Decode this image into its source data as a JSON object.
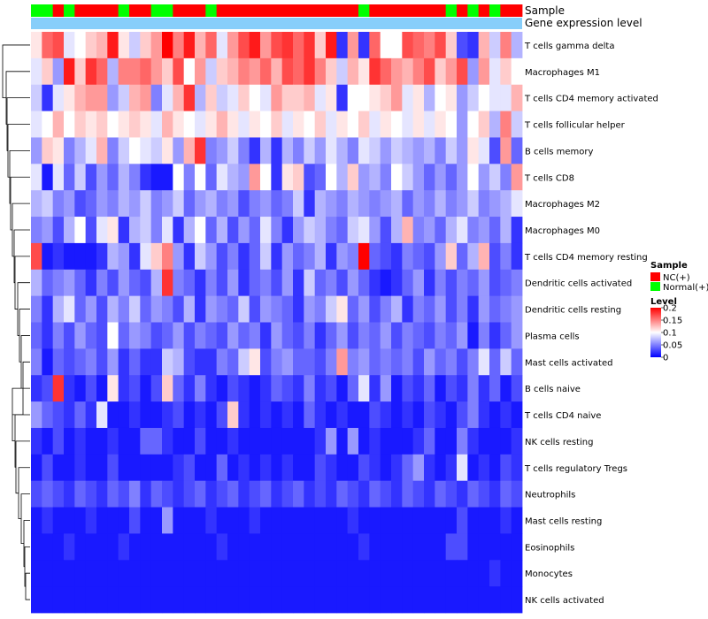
{
  "chart_data": {
    "type": "heatmap",
    "annotation_rows": [
      "Sample",
      "Gene expression level"
    ],
    "sample_groups": [
      "N",
      "N",
      "R",
      "N",
      "R",
      "R",
      "R",
      "R",
      "N",
      "R",
      "R",
      "N",
      "N",
      "R",
      "R",
      "R",
      "N",
      "R",
      "R",
      "R",
      "R",
      "R",
      "R",
      "R",
      "R",
      "R",
      "R",
      "R",
      "R",
      "R",
      "N",
      "R",
      "R",
      "R",
      "R",
      "R",
      "R",
      "R",
      "N",
      "R",
      "N",
      "R",
      "N",
      "R",
      "R"
    ],
    "gene_expression_color": "#87CEFA",
    "rows": [
      {
        "label": "T cells gamma delta",
        "values": [
          0.11,
          0.16,
          0.17,
          0.09,
          0.1,
          0.12,
          0.13,
          0.19,
          0.11,
          0.08,
          0.12,
          0.14,
          0.2,
          0.15,
          0.19,
          0.13,
          0.16,
          0.09,
          0.14,
          0.17,
          0.19,
          0.14,
          0.17,
          0.18,
          0.16,
          0.18,
          0.12,
          0.19,
          0.02,
          0.14,
          0.02,
          0.16,
          0.1,
          0.1,
          0.17,
          0.16,
          0.15,
          0.17,
          0.12,
          0.03,
          0.02,
          0.13,
          0.08,
          0.15,
          0.07
        ]
      },
      {
        "label": "Macrophages M1",
        "values": [
          0.09,
          0.12,
          0.06,
          0.19,
          0.12,
          0.18,
          0.16,
          0.07,
          0.15,
          0.15,
          0.16,
          0.14,
          0.12,
          0.17,
          0.1,
          0.14,
          0.08,
          0.12,
          0.13,
          0.15,
          0.14,
          0.16,
          0.13,
          0.17,
          0.16,
          0.18,
          0.15,
          0.12,
          0.08,
          0.13,
          0.11,
          0.18,
          0.16,
          0.14,
          0.13,
          0.15,
          0.17,
          0.12,
          0.14,
          0.17,
          0.06,
          0.14,
          0.09,
          0.12,
          0.1
        ]
      },
      {
        "label": "T cells CD4 memory activated",
        "values": [
          0.08,
          0.02,
          0.09,
          0.11,
          0.13,
          0.14,
          0.14,
          0.06,
          0.08,
          0.13,
          0.14,
          0.05,
          0.09,
          0.13,
          0.18,
          0.07,
          0.12,
          0.08,
          0.09,
          0.12,
          0.1,
          0.09,
          0.14,
          0.12,
          0.12,
          0.13,
          0.09,
          0.11,
          0.02,
          0.1,
          0.1,
          0.11,
          0.12,
          0.14,
          0.09,
          0.11,
          0.07,
          0.1,
          0.11,
          0.06,
          0.08,
          0.1,
          0.09,
          0.09,
          0.13
        ]
      },
      {
        "label": "T cells follicular helper",
        "values": [
          0.09,
          0.1,
          0.13,
          0.1,
          0.12,
          0.11,
          0.12,
          0.1,
          0.11,
          0.12,
          0.11,
          0.09,
          0.13,
          0.11,
          0.1,
          0.09,
          0.11,
          0.13,
          0.11,
          0.09,
          0.11,
          0.1,
          0.12,
          0.09,
          0.11,
          0.1,
          0.12,
          0.09,
          0.11,
          0.1,
          0.12,
          0.09,
          0.11,
          0.1,
          0.09,
          0.11,
          0.09,
          0.11,
          0.1,
          0.06,
          0.1,
          0.12,
          0.07,
          0.15,
          0.08
        ]
      },
      {
        "label": "B cells memory",
        "values": [
          0.06,
          0.12,
          0.11,
          0.05,
          0.07,
          0.09,
          0.13,
          0.05,
          0.08,
          0.1,
          0.09,
          0.08,
          0.11,
          0.06,
          0.13,
          0.18,
          0.05,
          0.06,
          0.08,
          0.05,
          0.02,
          0.07,
          0.02,
          0.07,
          0.05,
          0.08,
          0.06,
          0.09,
          0.07,
          0.05,
          0.09,
          0.08,
          0.06,
          0.08,
          0.07,
          0.06,
          0.07,
          0.05,
          0.08,
          0.06,
          0.11,
          0.09,
          0.03,
          0.14,
          0.04
        ]
      },
      {
        "label": "T cells CD8",
        "values": [
          0.09,
          0.01,
          0.09,
          0.04,
          0.08,
          0.03,
          0.06,
          0.04,
          0.07,
          0.05,
          0.02,
          0.01,
          0.01,
          0.1,
          0.05,
          0.1,
          0.04,
          0.09,
          0.07,
          0.06,
          0.14,
          0.1,
          0.02,
          0.11,
          0.12,
          0.03,
          0.04,
          0.1,
          0.07,
          0.12,
          0.06,
          0.07,
          0.05,
          0.1,
          0.08,
          0.06,
          0.04,
          0.06,
          0.04,
          0.06,
          0.1,
          0.06,
          0.08,
          0.05,
          0.14
        ]
      },
      {
        "label": "Macrophages M2",
        "values": [
          0.07,
          0.08,
          0.05,
          0.06,
          0.03,
          0.04,
          0.06,
          0.05,
          0.07,
          0.06,
          0.08,
          0.05,
          0.06,
          0.08,
          0.04,
          0.06,
          0.07,
          0.05,
          0.06,
          0.03,
          0.05,
          0.06,
          0.04,
          0.05,
          0.08,
          0.02,
          0.07,
          0.06,
          0.05,
          0.07,
          0.06,
          0.05,
          0.06,
          0.07,
          0.04,
          0.06,
          0.05,
          0.07,
          0.05,
          0.06,
          0.08,
          0.05,
          0.06,
          0.07,
          0.09
        ]
      },
      {
        "label": "Macrophages M0",
        "values": [
          0.05,
          0.06,
          0.03,
          0.07,
          0.1,
          0.03,
          0.09,
          0.11,
          0.02,
          0.07,
          0.08,
          0.05,
          0.09,
          0.02,
          0.07,
          0.1,
          0.04,
          0.07,
          0.03,
          0.06,
          0.04,
          0.09,
          0.05,
          0.02,
          0.06,
          0.08,
          0.07,
          0.05,
          0.04,
          0.08,
          0.09,
          0.06,
          0.03,
          0.07,
          0.13,
          0.05,
          0.06,
          0.04,
          0.07,
          0.09,
          0.05,
          0.06,
          0.04,
          0.07,
          0.02
        ]
      },
      {
        "label": "T cells CD4 memory resting",
        "values": [
          0.17,
          0.01,
          0.02,
          0.01,
          0.01,
          0.01,
          0.02,
          0.07,
          0.06,
          0.02,
          0.09,
          0.12,
          0.15,
          0.06,
          0.02,
          0.08,
          0.06,
          0.03,
          0.05,
          0.02,
          0.04,
          0.08,
          0.02,
          0.06,
          0.04,
          0.05,
          0.07,
          0.02,
          0.06,
          0.05,
          0.2,
          0.04,
          0.03,
          0.02,
          0.05,
          0.04,
          0.03,
          0.06,
          0.12,
          0.04,
          0.07,
          0.13,
          0.03,
          0.05,
          0.02
        ]
      },
      {
        "label": "Dendritic cells activated",
        "values": [
          0.07,
          0.04,
          0.05,
          0.06,
          0.04,
          0.02,
          0.05,
          0.03,
          0.06,
          0.04,
          0.03,
          0.07,
          0.18,
          0.05,
          0.04,
          0.02,
          0.05,
          0.03,
          0.06,
          0.02,
          0.04,
          0.05,
          0.03,
          0.06,
          0.02,
          0.08,
          0.04,
          0.05,
          0.03,
          0.06,
          0.04,
          0.02,
          0.01,
          0.02,
          0.04,
          0.06,
          0.02,
          0.05,
          0.03,
          0.05,
          0.04,
          0.06,
          0.03,
          0.04,
          0.05
        ]
      },
      {
        "label": "Dendritic cells resting",
        "values": [
          0.05,
          0.02,
          0.07,
          0.09,
          0.04,
          0.06,
          0.03,
          0.07,
          0.05,
          0.08,
          0.04,
          0.06,
          0.05,
          0.03,
          0.07,
          0.02,
          0.06,
          0.05,
          0.04,
          0.08,
          0.03,
          0.06,
          0.05,
          0.04,
          0.02,
          0.06,
          0.05,
          0.08,
          0.11,
          0.04,
          0.06,
          0.03,
          0.05,
          0.07,
          0.02,
          0.05,
          0.04,
          0.06,
          0.03,
          0.05,
          0.02,
          0.06,
          0.04,
          0.05,
          0.06
        ]
      },
      {
        "label": "Plasma cells",
        "values": [
          0.04,
          0.02,
          0.05,
          0.03,
          0.06,
          0.04,
          0.03,
          0.1,
          0.04,
          0.06,
          0.05,
          0.03,
          0.04,
          0.06,
          0.03,
          0.05,
          0.04,
          0.03,
          0.06,
          0.04,
          0.05,
          0.02,
          0.06,
          0.04,
          0.03,
          0.05,
          0.02,
          0.04,
          0.06,
          0.03,
          0.05,
          0.04,
          0.06,
          0.03,
          0.05,
          0.04,
          0.03,
          0.05,
          0.04,
          0.06,
          0.01,
          0.05,
          0.02,
          0.04,
          0.06
        ]
      },
      {
        "label": "Mast cells activated",
        "values": [
          0.05,
          0.01,
          0.04,
          0.03,
          0.04,
          0.05,
          0.03,
          0.06,
          0.02,
          0.04,
          0.02,
          0.02,
          0.08,
          0.07,
          0.03,
          0.02,
          0.02,
          0.05,
          0.04,
          0.08,
          0.11,
          0.03,
          0.05,
          0.06,
          0.04,
          0.04,
          0.03,
          0.05,
          0.14,
          0.05,
          0.06,
          0.04,
          0.05,
          0.04,
          0.05,
          0.03,
          0.06,
          0.04,
          0.05,
          0.03,
          0.05,
          0.09,
          0.04,
          0.08,
          0.04
        ]
      },
      {
        "label": "B cells naive",
        "values": [
          0.02,
          0.03,
          0.18,
          0.02,
          0.01,
          0.03,
          0.01,
          0.11,
          0.02,
          0.03,
          0.01,
          0.03,
          0.12,
          0.04,
          0.02,
          0.05,
          0.02,
          0.01,
          0.03,
          0.02,
          0.01,
          0.02,
          0.04,
          0.03,
          0.02,
          0.05,
          0.02,
          0.03,
          0.01,
          0.04,
          0.09,
          0.02,
          0.06,
          0.01,
          0.03,
          0.02,
          0.04,
          0.01,
          0.03,
          0.02,
          0.05,
          0.02,
          0.04,
          0.01,
          0.03
        ]
      },
      {
        "label": "T cells CD4 naive",
        "values": [
          0.06,
          0.04,
          0.03,
          0.02,
          0.04,
          0.02,
          0.09,
          0.01,
          0.01,
          0.02,
          0.01,
          0.01,
          0.02,
          0.03,
          0.01,
          0.02,
          0.01,
          0.03,
          0.12,
          0.02,
          0.01,
          0.02,
          0.01,
          0.02,
          0.01,
          0.04,
          0.02,
          0.01,
          0.02,
          0.01,
          0.01,
          0.03,
          0.02,
          0.01,
          0.02,
          0.01,
          0.03,
          0.02,
          0.01,
          0.03,
          0.05,
          0.02,
          0.01,
          0.02,
          0.01
        ]
      },
      {
        "label": "NK cells resting",
        "values": [
          0.02,
          0.01,
          0.03,
          0.01,
          0.02,
          0.01,
          0.01,
          0.02,
          0.01,
          0.01,
          0.04,
          0.04,
          0.02,
          0.01,
          0.01,
          0.03,
          0.01,
          0.01,
          0.02,
          0.01,
          0.01,
          0.01,
          0.01,
          0.01,
          0.01,
          0.01,
          0.02,
          0.06,
          0.01,
          0.06,
          0.01,
          0.02,
          0.01,
          0.01,
          0.01,
          0.02,
          0.04,
          0.01,
          0.01,
          0.05,
          0.02,
          0.01,
          0.01,
          0.01,
          0.02
        ]
      },
      {
        "label": "T cells regulatory  Tregs",
        "values": [
          0.01,
          0.03,
          0.01,
          0.01,
          0.02,
          0.01,
          0.01,
          0.03,
          0.01,
          0.01,
          0.01,
          0.01,
          0.01,
          0.02,
          0.03,
          0.01,
          0.01,
          0.04,
          0.01,
          0.02,
          0.01,
          0.02,
          0.01,
          0.02,
          0.01,
          0.01,
          0.03,
          0.02,
          0.01,
          0.01,
          0.03,
          0.02,
          0.01,
          0.02,
          0.04,
          0.06,
          0.02,
          0.01,
          0.02,
          0.09,
          0.01,
          0.02,
          0.01,
          0.03,
          0.02
        ]
      },
      {
        "label": "Neutrophils",
        "values": [
          0.03,
          0.04,
          0.03,
          0.02,
          0.04,
          0.03,
          0.02,
          0.04,
          0.03,
          0.05,
          0.02,
          0.04,
          0.03,
          0.02,
          0.03,
          0.04,
          0.02,
          0.03,
          0.04,
          0.02,
          0.03,
          0.04,
          0.02,
          0.03,
          0.04,
          0.02,
          0.03,
          0.02,
          0.04,
          0.03,
          0.02,
          0.04,
          0.03,
          0.02,
          0.04,
          0.03,
          0.02,
          0.04,
          0.03,
          0.02,
          0.04,
          0.03,
          0.02,
          0.04,
          0.03
        ]
      },
      {
        "label": "Mast cells resting",
        "values": [
          0.01,
          0.02,
          0.01,
          0.01,
          0.01,
          0.02,
          0.01,
          0.01,
          0.01,
          0.03,
          0.01,
          0.01,
          0.06,
          0.01,
          0.01,
          0.01,
          0.02,
          0.01,
          0.01,
          0.01,
          0.02,
          0.01,
          0.01,
          0.01,
          0.01,
          0.01,
          0.01,
          0.01,
          0.01,
          0.02,
          0.01,
          0.01,
          0.01,
          0.01,
          0.01,
          0.01,
          0.01,
          0.01,
          0.01,
          0.03,
          0.01,
          0.01,
          0.01,
          0.02,
          0.01
        ]
      },
      {
        "label": "Eosinophils",
        "values": [
          0.01,
          0.01,
          0.01,
          0.02,
          0.01,
          0.01,
          0.01,
          0.01,
          0.02,
          0.01,
          0.01,
          0.01,
          0.01,
          0.01,
          0.01,
          0.01,
          0.01,
          0.02,
          0.01,
          0.01,
          0.01,
          0.01,
          0.01,
          0.01,
          0.01,
          0.01,
          0.01,
          0.01,
          0.01,
          0.01,
          0.02,
          0.01,
          0.01,
          0.01,
          0.01,
          0.01,
          0.01,
          0.01,
          0.03,
          0.03,
          0.01,
          0.01,
          0.01,
          0.01,
          0.01
        ]
      },
      {
        "label": "Monocytes",
        "values": [
          0.01,
          0.01,
          0.01,
          0.01,
          0.01,
          0.01,
          0.01,
          0.01,
          0.01,
          0.01,
          0.01,
          0.01,
          0.01,
          0.01,
          0.01,
          0.01,
          0.01,
          0.01,
          0.01,
          0.01,
          0.01,
          0.01,
          0.01,
          0.01,
          0.01,
          0.01,
          0.01,
          0.01,
          0.01,
          0.01,
          0.01,
          0.01,
          0.01,
          0.01,
          0.01,
          0.01,
          0.01,
          0.01,
          0.01,
          0.01,
          0.01,
          0.01,
          0.02,
          0.01,
          0.01
        ]
      },
      {
        "label": "NK cells activated",
        "values": [
          0.01,
          0.01,
          0.01,
          0.01,
          0.01,
          0.01,
          0.01,
          0.01,
          0.01,
          0.01,
          0.01,
          0.01,
          0.01,
          0.01,
          0.01,
          0.01,
          0.01,
          0.01,
          0.01,
          0.01,
          0.01,
          0.01,
          0.01,
          0.01,
          0.01,
          0.01,
          0.01,
          0.01,
          0.01,
          0.01,
          0.01,
          0.01,
          0.01,
          0.01,
          0.01,
          0.01,
          0.01,
          0.01,
          0.01,
          0.01,
          0.01,
          0.01,
          0.01,
          0.01,
          0.01
        ]
      }
    ],
    "legend_sample": {
      "title": "Sample",
      "entries": [
        {
          "key": "R",
          "label": "NC(+)",
          "color": "#FF0000"
        },
        {
          "key": "N",
          "label": "Normal(+)",
          "color": "#00FF00"
        }
      ]
    },
    "legend_level": {
      "title": "Level",
      "ticks": [
        {
          "value": 0.2,
          "label": "0.2"
        },
        {
          "value": 0.15,
          "label": "0.15"
        },
        {
          "value": 0.1,
          "label": "0.1"
        },
        {
          "value": 0.05,
          "label": "0.05"
        },
        {
          "value": 0,
          "label": "0"
        }
      ],
      "range": [
        0,
        0.2
      ],
      "colors": {
        "low": "#0000FF",
        "mid": "#FFFFFF",
        "high": "#FF0000"
      }
    }
  }
}
